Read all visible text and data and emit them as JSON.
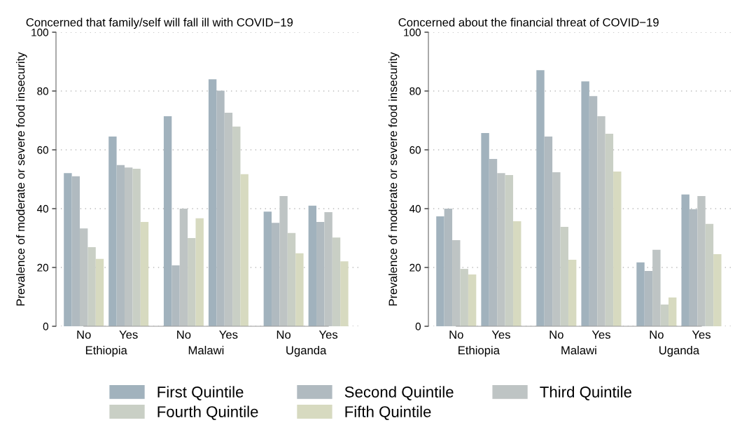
{
  "chart_data": [
    {
      "type": "bar",
      "title": "Concerned that family/self will fall ill with COVID−19",
      "ylabel": "Prevalence of moderate or severe food insecurity",
      "categories": [
        "No",
        "Yes",
        "No",
        "Yes",
        "No",
        "Yes"
      ],
      "annotations": [
        "Ethiopia",
        "Malawi",
        "Uganda"
      ],
      "series": [
        {
          "name": "First Quintile",
          "color": "#a1b2bd",
          "values": [
            52.1,
            64.5,
            71.4,
            84.0,
            39.0,
            41.0
          ]
        },
        {
          "name": "Second Quintile",
          "color": "#b0bac0",
          "values": [
            51.0,
            54.8,
            20.7,
            80.1,
            35.2,
            35.5
          ]
        },
        {
          "name": "Third Quintile",
          "color": "#bec4c4",
          "values": [
            33.3,
            54.0,
            40.0,
            72.6,
            44.3,
            38.8
          ]
        },
        {
          "name": "Fourth Quintile",
          "color": "#c9cfc5",
          "values": [
            26.9,
            53.6,
            30.0,
            67.9,
            31.7,
            30.2
          ]
        },
        {
          "name": "Fifth Quintile",
          "color": "#d7dac0",
          "values": [
            22.9,
            35.5,
            36.7,
            51.7,
            24.8,
            22.1
          ]
        }
      ],
      "ylim": [
        0,
        100
      ],
      "yticks": [
        0,
        20,
        40,
        60,
        80,
        100
      ],
      "grid": "y",
      "legend": "bottom"
    },
    {
      "type": "bar",
      "title": "Concerned about the financial threat of COVID−19",
      "ylabel": "Prevalence of moderate or severe food insecurity",
      "categories": [
        "No",
        "Yes",
        "No",
        "Yes",
        "No",
        "Yes"
      ],
      "annotations": [
        "Ethiopia",
        "Malawi",
        "Uganda"
      ],
      "series": [
        {
          "color": "#a1b2bd",
          "values": [
            37.4,
            65.7,
            87.1,
            83.3,
            21.7,
            44.8
          ]
        },
        {
          "color": "#b0bac0",
          "values": [
            40.0,
            56.9,
            64.5,
            78.3,
            18.8,
            39.8
          ]
        },
        {
          "color": "#bec4c4",
          "values": [
            29.3,
            52.1,
            52.4,
            71.4,
            26.0,
            44.3
          ]
        },
        {
          "color": "#c9cfc5",
          "values": [
            19.5,
            51.4,
            33.8,
            65.5,
            7.4,
            34.8
          ]
        },
        {
          "color": "#d7dac0",
          "values": [
            17.6,
            35.7,
            22.6,
            52.6,
            9.8,
            24.5
          ]
        }
      ],
      "ylim": [
        0,
        100
      ],
      "yticks": [
        0,
        20,
        40,
        60,
        80,
        100
      ],
      "grid": "y"
    }
  ]
}
